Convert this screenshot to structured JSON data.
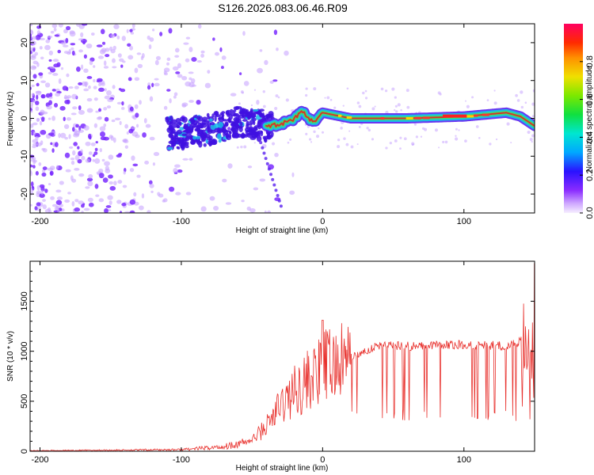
{
  "title": "S126.2026.083.06.46.R09",
  "colors": {
    "snr_line": "#e8302c",
    "band_core": "#e82020",
    "band_mid": "#3ee070",
    "band_edge": "#1ab8e8",
    "scatter": "#7a2cff",
    "scatter_light": "#c9a6ff",
    "frame": "#000000"
  },
  "chart_data": [
    {
      "type": "heatmap",
      "name": "spectrogram",
      "xlabel": "Height of straight line (km)",
      "ylabel": "Frequency (Hz)",
      "xlim": [
        -207,
        150
      ],
      "ylim": [
        -25,
        25
      ],
      "xticks": [
        -200,
        -100,
        0,
        100
      ],
      "yticks": [
        -20,
        -10,
        0,
        10,
        20
      ],
      "xtick_labels": [
        "-200",
        "-100",
        "0",
        "100"
      ],
      "ytick_labels": [
        "-20",
        "-10",
        "0",
        "10",
        "20"
      ],
      "colorbar": {
        "label": "Normalized spectral amplitude",
        "range": [
          0,
          1
        ],
        "ticks": [
          0.0,
          0.2,
          0.4,
          0.6,
          0.8
        ],
        "tick_labels": [
          "0.0",
          "0.2",
          "0.4",
          "0.6",
          "0.8"
        ]
      },
      "band_centerline": {
        "x": [
          -100,
          -80,
          -60,
          -50,
          -40,
          -30,
          -20,
          -15,
          -10,
          -5,
          0,
          20,
          60,
          100,
          130,
          140,
          150
        ],
        "y": [
          -4,
          -3,
          -1,
          -1.5,
          -2,
          -1.5,
          0,
          2,
          0,
          -1,
          1.5,
          0,
          0,
          0.5,
          1.5,
          0.5,
          -2
        ]
      },
      "noise_region_x": [
        -207,
        -60
      ],
      "noise_region_y": [
        -25,
        25
      ]
    },
    {
      "type": "line",
      "name": "snr",
      "xlabel": "Height of straight line (km)",
      "ylabel": "SNR (10 * v/v)",
      "xlim": [
        -207,
        150
      ],
      "ylim": [
        0,
        1900
      ],
      "xticks": [
        -200,
        -100,
        0,
        100
      ],
      "yticks": [
        0,
        500,
        1000,
        1500
      ],
      "xtick_labels": [
        "-200",
        "-100",
        "0",
        "100"
      ],
      "ytick_labels": [
        "0",
        "500",
        "1000",
        "1500"
      ],
      "trend": {
        "x": [
          -207,
          -150,
          -100,
          -70,
          -50,
          -40,
          -30,
          -20,
          -10,
          -2,
          0,
          10,
          20,
          30,
          40,
          60,
          80,
          100,
          120,
          130,
          140,
          150
        ],
        "y": [
          5,
          10,
          15,
          40,
          110,
          250,
          450,
          600,
          720,
          780,
          850,
          860,
          930,
          1000,
          1060,
          1050,
          1060,
          1070,
          1060,
          1050,
          1100,
          1150
        ]
      },
      "peak": {
        "x": 0,
        "y": 1310
      },
      "end_spike": {
        "x": 150,
        "y": 1880
      }
    }
  ]
}
